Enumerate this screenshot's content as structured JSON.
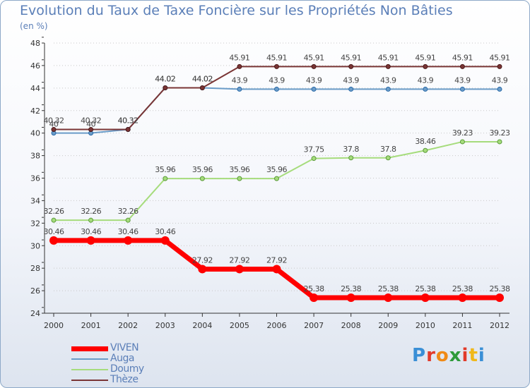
{
  "header": {
    "title": "Evolution du Taux de Taxe Foncière sur les Propriétés Non Bâties",
    "unit": "(en %)"
  },
  "chart_data": {
    "type": "line",
    "title": "Evolution du Taux de Taxe Foncière sur les Propriétés Non Bâties",
    "ylabel": "(en %)",
    "x": [
      "2000",
      "2001",
      "2002",
      "2003",
      "2004",
      "2005",
      "2006",
      "2007",
      "2008",
      "2009",
      "2010",
      "2011",
      "2012"
    ],
    "ylim": [
      24,
      48
    ],
    "yticks": [
      24,
      26,
      28,
      30,
      32,
      34,
      36,
      38,
      40,
      42,
      44,
      46,
      48
    ],
    "grid": "horizontal dotted",
    "legend_position": "bottom-left",
    "series": [
      {
        "name": "VIVEN",
        "color": "#ff0000",
        "values": [
          30.46,
          30.46,
          30.46,
          30.46,
          27.92,
          27.92,
          27.92,
          25.38,
          25.38,
          25.38,
          25.38,
          25.38,
          25.38
        ]
      },
      {
        "name": "Auga",
        "color": "#6a9cc8",
        "values": [
          40,
          40,
          40.32,
          44.02,
          44.02,
          43.9,
          43.9,
          43.9,
          43.9,
          43.9,
          43.9,
          43.9,
          43.9
        ]
      },
      {
        "name": "Doumy",
        "color": "#a6dc7c",
        "values": [
          32.26,
          32.26,
          32.26,
          35.96,
          35.96,
          35.96,
          35.96,
          37.75,
          37.8,
          37.8,
          38.46,
          39.23,
          39.23
        ]
      },
      {
        "name": "Thèze",
        "color": "#7a3535",
        "values": [
          40.32,
          40.32,
          40.32,
          44.02,
          44.02,
          45.91,
          45.91,
          45.91,
          45.91,
          45.91,
          45.91,
          45.91,
          45.91
        ]
      }
    ],
    "data_labels": {
      "VIVEN": [
        "30.46",
        "30.46",
        "30.46",
        "30.46",
        "27.92",
        "27.92",
        "27.92",
        "25.38",
        "25.38",
        "25.38",
        "25.38",
        "25.38",
        "25.38"
      ],
      "Auga": [
        "40",
        "40",
        "40.32",
        "44.02",
        "44.02",
        "43.9",
        "43.9",
        "43.9",
        "43.9",
        "43.9",
        "43.9",
        "43.9",
        "43.9"
      ],
      "Doumy": [
        "32.26",
        "32.26",
        "32.26",
        "35.96",
        "35.96",
        "35.96",
        "35.96",
        "37.75",
        "37.8",
        "37.8",
        "38.46",
        "39.23",
        "39.23"
      ],
      "Thèze": [
        "40.32",
        "40.32",
        "40.32",
        "44.02",
        "44.02",
        "45.91",
        "45.91",
        "45.91",
        "45.91",
        "45.91",
        "45.91",
        "45.91",
        "45.91"
      ]
    }
  },
  "logo": {
    "text": "Proxiti",
    "colors": [
      "#3a8fd6",
      "#e23a2a",
      "#f08a16",
      "#2e9a3a",
      "#e23a2a",
      "#f0b81a",
      "#3a8fd6"
    ]
  }
}
